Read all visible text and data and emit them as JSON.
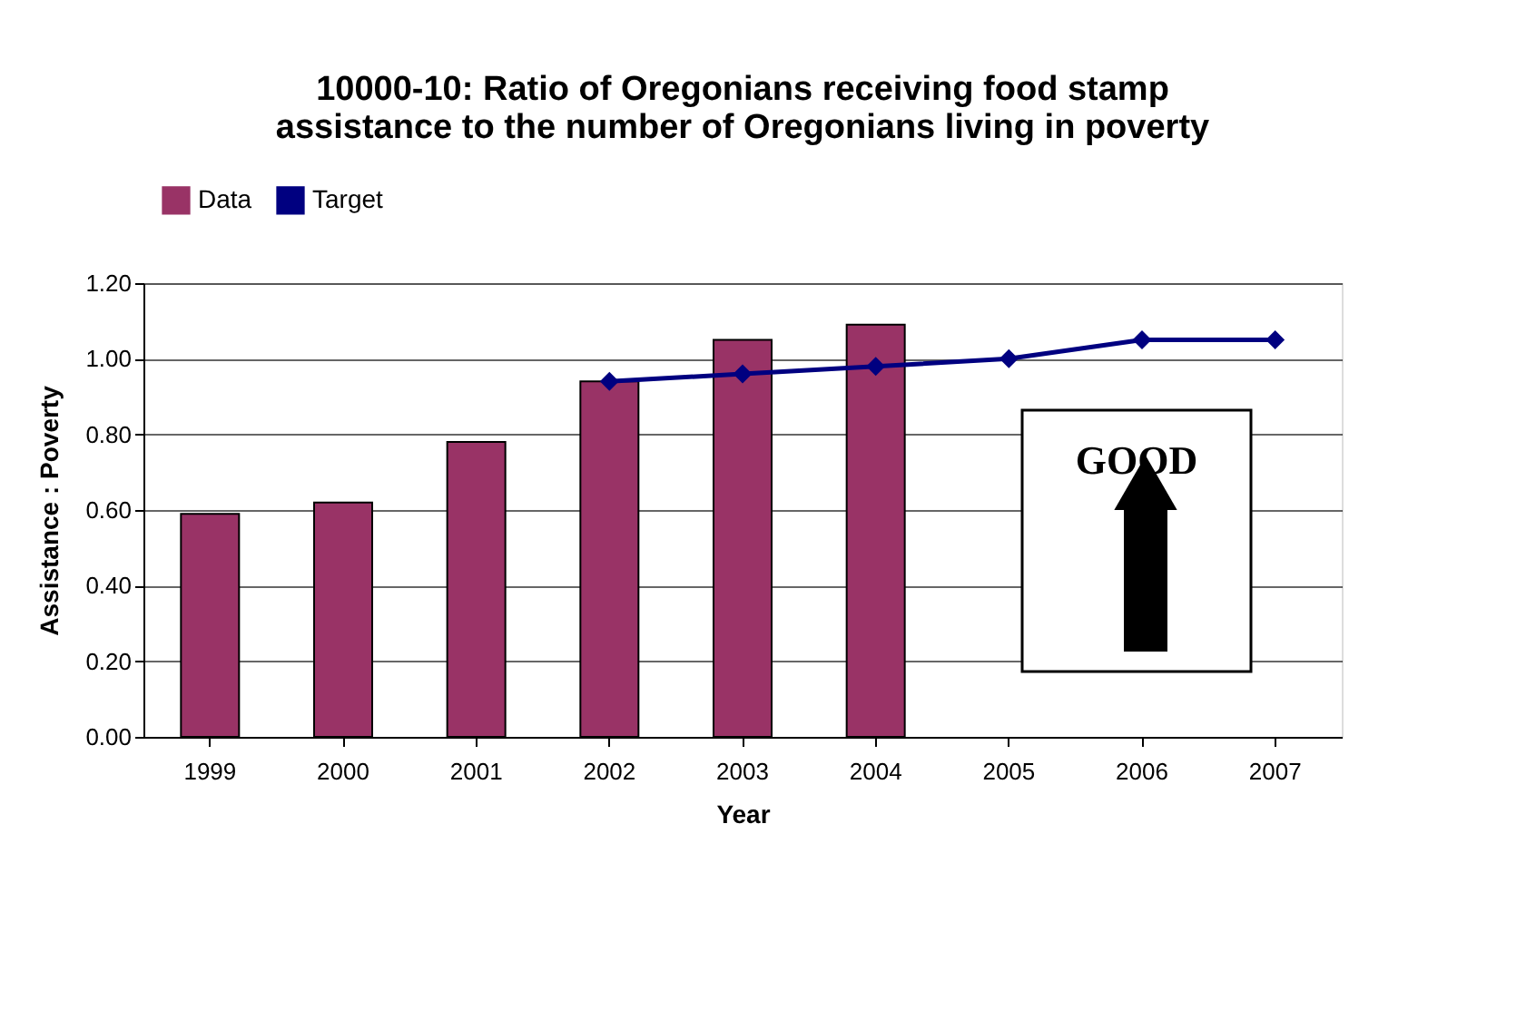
{
  "chart_data": {
    "type": "bar",
    "title": "10000-10:  Ratio of Oregonians receiving food stamp\nassistance to the number of Oregonians living in poverty",
    "xlabel": "Year",
    "ylabel": "Assistance : Poverty",
    "categories": [
      "1999",
      "2000",
      "2001",
      "2002",
      "2003",
      "2004",
      "2005",
      "2006",
      "2007"
    ],
    "series": [
      {
        "name": "Data",
        "color": "#993366",
        "values": [
          0.59,
          0.62,
          0.78,
          0.94,
          1.05,
          1.09,
          null,
          null,
          null
        ]
      },
      {
        "name": "Target",
        "type": "line",
        "color": "#000080",
        "marker": "diamond",
        "values": [
          null,
          null,
          null,
          0.94,
          0.96,
          0.98,
          1.0,
          1.05,
          1.05
        ]
      }
    ],
    "ylim": [
      0,
      1.2
    ],
    "yticks": [
      {
        "value": 0,
        "label": "0.00"
      },
      {
        "value": 0.2,
        "label": "0.20"
      },
      {
        "value": 0.4,
        "label": "0.40"
      },
      {
        "value": 0.6,
        "label": "0.60"
      },
      {
        "value": 0.8,
        "label": "0.80"
      },
      {
        "value": 1.0,
        "label": "1.00"
      },
      {
        "value": 1.2,
        "label": "1.20"
      }
    ],
    "grid": "y",
    "legend": "top",
    "annotations": [
      "GOOD"
    ]
  }
}
